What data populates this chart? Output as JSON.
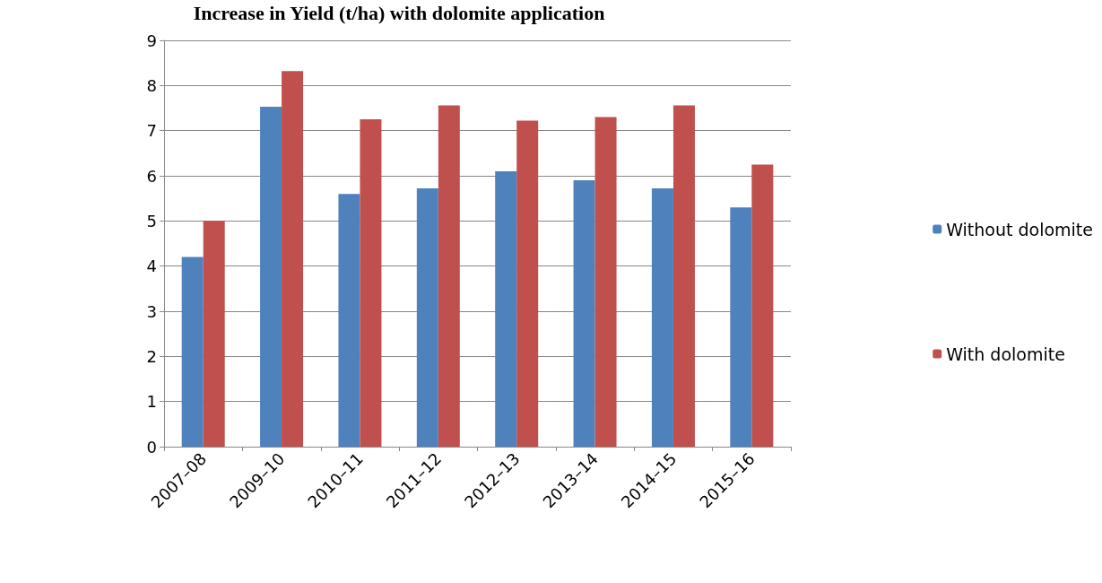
{
  "chart_data": {
    "type": "bar",
    "title": "Increase in Yield (t/ha) with dolomite application",
    "categories": [
      "2007–08",
      "2009–10",
      "2010–11",
      "2011–12",
      "2012–13",
      "2013–14",
      "2014–15",
      "2015–16"
    ],
    "series": [
      {
        "name": "Without dolomite",
        "color": "#4f81bd",
        "values": [
          4.2,
          7.53,
          5.6,
          5.72,
          6.1,
          5.9,
          5.72,
          5.3
        ]
      },
      {
        "name": "With dolomite",
        "color": "#c0504d",
        "values": [
          5.0,
          8.32,
          7.25,
          7.56,
          7.22,
          7.3,
          7.56,
          6.25
        ]
      }
    ],
    "ylim": [
      0,
      9
    ],
    "yticks": [
      0,
      1,
      2,
      3,
      4,
      5,
      6,
      7,
      8,
      9
    ],
    "grid": "y",
    "legend": "right"
  }
}
